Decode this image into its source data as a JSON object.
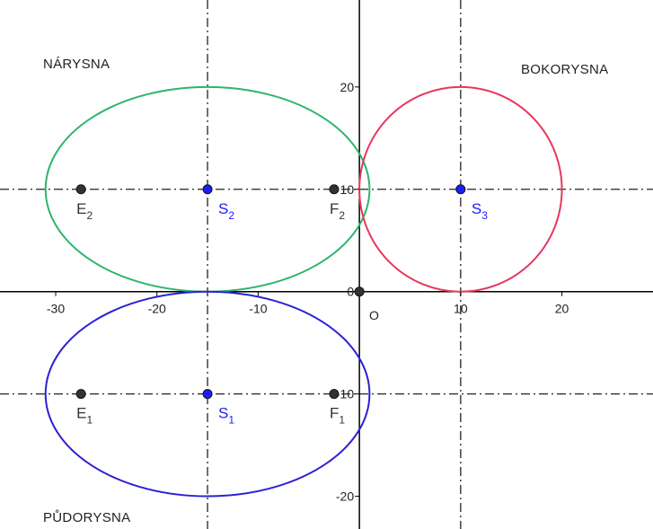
{
  "regions": {
    "narysna": "NÁRYSNA",
    "bokorysna": "BOKORYSNA",
    "pudorysna": "PŮDORYSNA"
  },
  "axes": {
    "x_ticks": [
      -30,
      -20,
      -10,
      10,
      20
    ],
    "y_ticks": [
      20,
      10,
      0,
      -10,
      -20
    ],
    "x_range": [
      -35.5,
      29
    ],
    "y_range": [
      -23.2,
      28.5
    ],
    "origin_label": "O"
  },
  "guide_lines": {
    "vertical_x": [
      -15,
      10
    ],
    "horizontal_y": [
      10,
      -10
    ]
  },
  "conics": [
    {
      "name": "green-ellipse",
      "cx": -15,
      "cy": 10,
      "rx": 16,
      "ry": 10,
      "color": "#2db56b"
    },
    {
      "name": "red-circle",
      "cx": 10,
      "cy": 10,
      "rx": 10,
      "ry": 10,
      "color": "#e8365d"
    },
    {
      "name": "blue-ellipse",
      "cx": -15,
      "cy": -10,
      "rx": 16,
      "ry": 10,
      "color": "#2a20d6"
    }
  ],
  "points": [
    {
      "name": "E2",
      "label": "E",
      "sub": "2",
      "x": -27.5,
      "y": 10,
      "color": "#333333",
      "label_color": "#333333"
    },
    {
      "name": "S2",
      "label": "S",
      "sub": "2",
      "x": -15,
      "y": 10,
      "color": "#1c1cff",
      "label_color": "#1c1cff"
    },
    {
      "name": "F2",
      "label": "F",
      "sub": "2",
      "x": -2.5,
      "y": 10,
      "color": "#333333",
      "label_color": "#333333"
    },
    {
      "name": "S3",
      "label": "S",
      "sub": "3",
      "x": 10,
      "y": 10,
      "color": "#1c1cff",
      "label_color": "#1c1cff"
    },
    {
      "name": "O",
      "label": "",
      "sub": "",
      "x": 0,
      "y": 0,
      "color": "#333333",
      "label_color": "#333333"
    },
    {
      "name": "E1",
      "label": "E",
      "sub": "1",
      "x": -27.5,
      "y": -10,
      "color": "#333333",
      "label_color": "#333333"
    },
    {
      "name": "S1",
      "label": "S",
      "sub": "1",
      "x": -15,
      "y": -10,
      "color": "#1c1cff",
      "label_color": "#1c1cff"
    },
    {
      "name": "F1",
      "label": "F",
      "sub": "1",
      "x": -2.5,
      "y": -10,
      "color": "#333333",
      "label_color": "#333333"
    }
  ],
  "colors": {
    "axis": "#000000",
    "guide": "#222222"
  }
}
